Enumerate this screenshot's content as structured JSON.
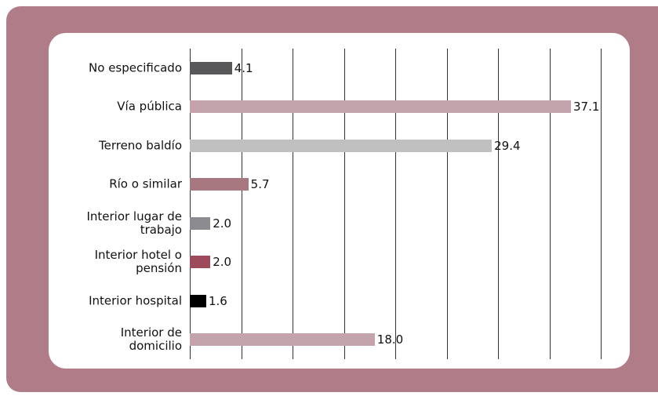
{
  "chart_data": {
    "type": "barh",
    "categories": [
      "No especificado",
      "Vía pública",
      "Terreno baldío",
      "Río o similar",
      "Interior lugar de trabajo",
      "Interior hotel o pensión",
      "Interior hospital",
      "Interior de domicilio"
    ],
    "values": [
      4.1,
      37.1,
      29.4,
      5.7,
      2.0,
      2.0,
      1.6,
      18.0
    ],
    "value_labels": [
      "4.1",
      "37.1",
      "29.4",
      "5.7",
      "2.0",
      "2.0",
      "1.6",
      "18.0"
    ],
    "colors": [
      "#58585a",
      "#c4a4ac",
      "#c0c0c0",
      "#a87880",
      "#8c8c90",
      "#9c4a5c",
      "#000000",
      "#c4a4ac"
    ],
    "xlim": [
      0,
      40
    ],
    "xticks": [
      0,
      5,
      10,
      15,
      20,
      25,
      30,
      35,
      40
    ],
    "grid": true
  }
}
